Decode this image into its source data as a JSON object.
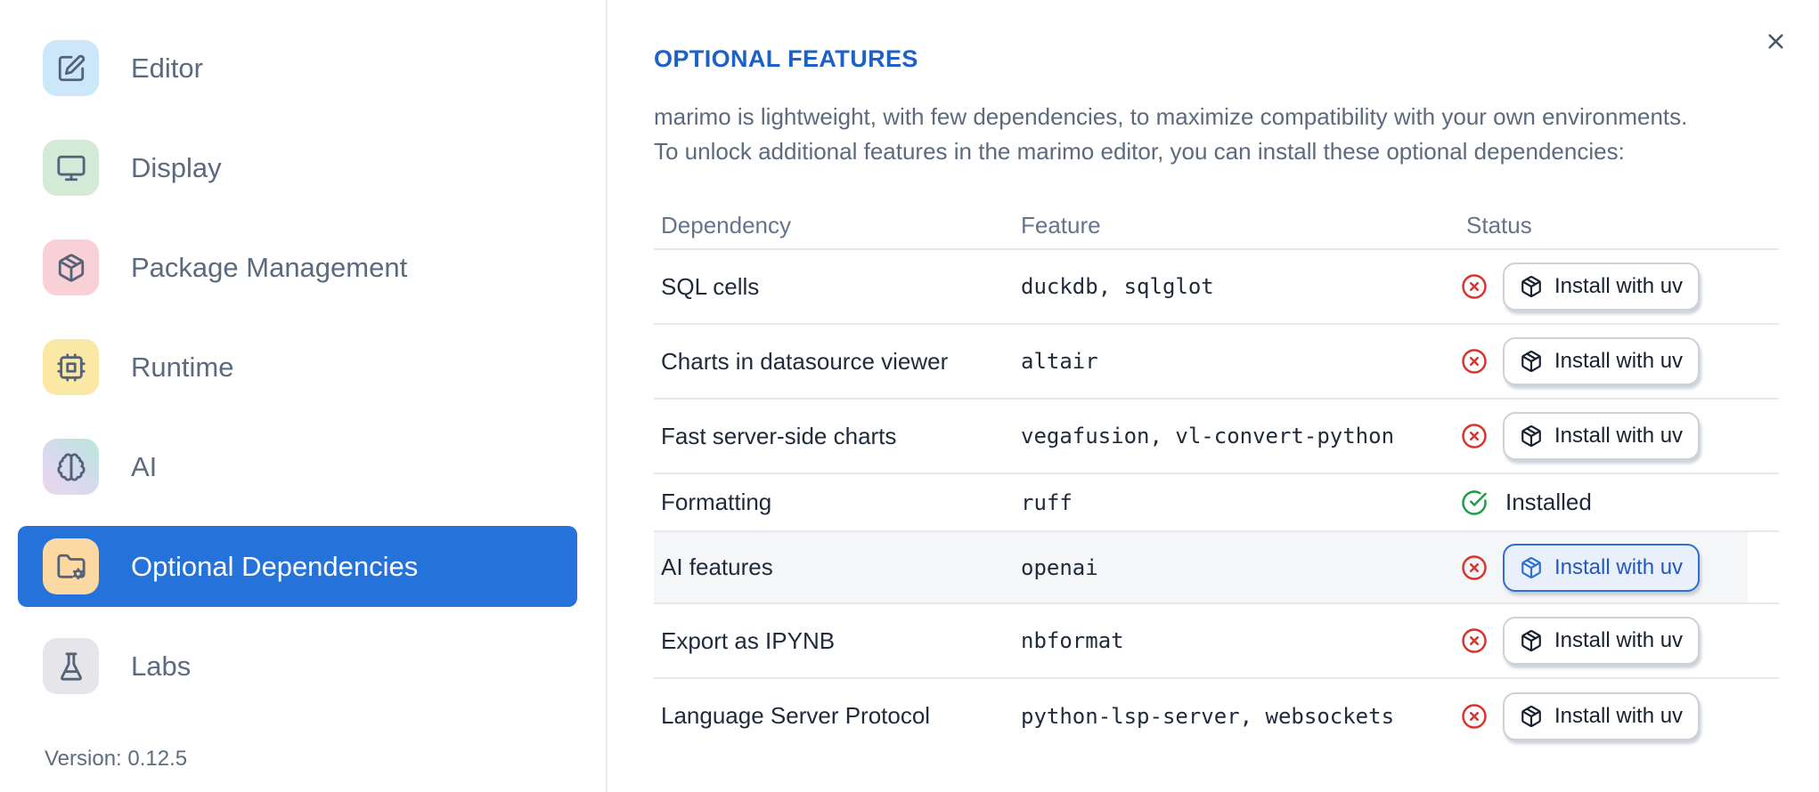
{
  "sidebar": {
    "items": [
      {
        "label": "Editor",
        "glyph": "square-pen",
        "icon_name": "square-pen-icon",
        "tile_color": "#cde7fa"
      },
      {
        "label": "Display",
        "glyph": "monitor",
        "icon_name": "monitor-icon",
        "tile_color": "#d2ead6"
      },
      {
        "label": "Package Management",
        "glyph": "package",
        "icon_name": "package-icon",
        "tile_color": "#f9d0d5"
      },
      {
        "label": "Runtime",
        "glyph": "cpu",
        "icon_name": "cpu-icon",
        "tile_color": "#fae8a4"
      },
      {
        "label": "AI",
        "glyph": "brain",
        "icon_name": "brain-icon",
        "tile_color": "linear-gradient(to bottom left,#b7e7db,#d8d9ee 55%,#ecd8ec)"
      },
      {
        "label": "Optional Dependencies",
        "glyph": "folder-cog",
        "icon_name": "folder-cog-icon",
        "tile_color": "#fcd9a2",
        "selected": true
      },
      {
        "label": "Labs",
        "glyph": "flask",
        "icon_name": "flask-icon",
        "tile_color": "#e6e6ea"
      }
    ],
    "version_label": "Version: 0.12.5",
    "selected_color": "#2573da"
  },
  "panel": {
    "title": "OPTIONAL FEATURES",
    "title_color": "#1c60c8",
    "description_line1": "marimo is lightweight, with few dependencies, to maximize compatibility with your own environments.",
    "description_line2": "To unlock additional features in the marimo editor, you can install these optional dependencies:"
  },
  "table": {
    "columns": [
      "Dependency",
      "Feature",
      "Status"
    ],
    "install_button_label": "Install with uv",
    "rows": [
      {
        "dependency": "SQL cells",
        "feature": "duckdb, sqlglot",
        "status": "missing",
        "action": "Install with uv"
      },
      {
        "dependency": "Charts in datasource viewer",
        "feature": "altair",
        "status": "missing",
        "action": "Install with uv"
      },
      {
        "dependency": "Fast server-side charts",
        "feature": "vegafusion, vl-convert-python",
        "status": "missing",
        "action": "Install with uv"
      },
      {
        "dependency": "Formatting",
        "feature": "ruff",
        "status": "installed",
        "status_label": "Installed"
      },
      {
        "dependency": "AI features",
        "feature": "openai",
        "status": "missing",
        "action": "Install with uv",
        "highlighted": true,
        "action_focused": true
      },
      {
        "dependency": "Export as IPYNB",
        "feature": "nbformat",
        "status": "missing",
        "action": "Install with uv"
      },
      {
        "dependency": "Language Server Protocol",
        "feature": "python-lsp-server, websockets",
        "status": "missing",
        "action": "Install with uv"
      }
    ]
  },
  "status_colors": {
    "missing": "#d7352e",
    "installed": "#1f9d4d"
  }
}
